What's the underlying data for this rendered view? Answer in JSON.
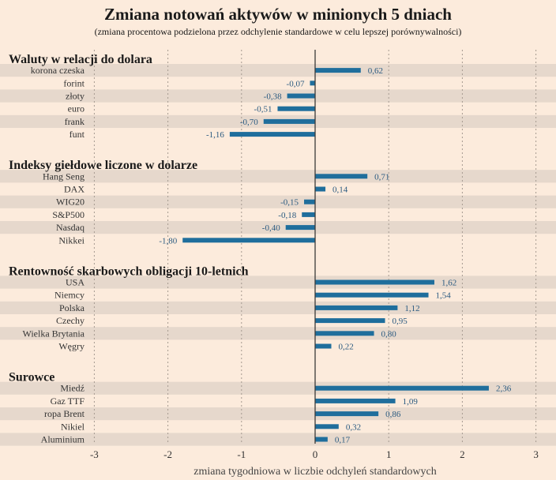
{
  "chart_data": {
    "type": "bar",
    "orientation": "horizontal",
    "title": "Zmiana notowań aktywów w minionych 5 dniach",
    "subtitle": "(zmiana procentowa podzielona przez odchylenie standardowe w celu lepszej porównywalności)",
    "xlabel": "zmiana tygodniowa w liczbie odchyleń standardowych",
    "xlim": [
      -3.3,
      3.2
    ],
    "xticks": [
      "-3",
      "-2",
      "-1",
      "0",
      "1",
      "2",
      "3"
    ],
    "bar_color": "#1f6e9c",
    "groups": [
      {
        "title": "Waluty w relacji do dolara",
        "items": [
          {
            "label": "korona czeska",
            "value": 0.62,
            "value_label": "0,62"
          },
          {
            "label": "forint",
            "value": -0.07,
            "value_label": "-0,07"
          },
          {
            "label": "złoty",
            "value": -0.38,
            "value_label": "-0,38"
          },
          {
            "label": "euro",
            "value": -0.51,
            "value_label": "-0,51"
          },
          {
            "label": "frank",
            "value": -0.7,
            "value_label": "-0,70"
          },
          {
            "label": "funt",
            "value": -1.16,
            "value_label": "-1,16"
          }
        ]
      },
      {
        "title": "Indeksy giełdowe liczone w dolarze",
        "items": [
          {
            "label": "Hang Seng",
            "value": 0.71,
            "value_label": "0,71"
          },
          {
            "label": "DAX",
            "value": 0.14,
            "value_label": "0,14"
          },
          {
            "label": "WIG20",
            "value": -0.15,
            "value_label": "-0,15"
          },
          {
            "label": "S&P500",
            "value": -0.18,
            "value_label": "-0,18"
          },
          {
            "label": "Nasdaq",
            "value": -0.4,
            "value_label": "-0,40"
          },
          {
            "label": "Nikkei",
            "value": -1.8,
            "value_label": "-1,80"
          }
        ]
      },
      {
        "title": "Rentowność skarbowych obligacji 10-letnich",
        "items": [
          {
            "label": "USA",
            "value": 1.62,
            "value_label": "1,62"
          },
          {
            "label": "Niemcy",
            "value": 1.54,
            "value_label": "1,54"
          },
          {
            "label": "Polska",
            "value": 1.12,
            "value_label": "1,12"
          },
          {
            "label": "Czechy",
            "value": 0.95,
            "value_label": "0,95"
          },
          {
            "label": "Wielka Brytania",
            "value": 0.8,
            "value_label": "0,80"
          },
          {
            "label": "Węgry",
            "value": 0.22,
            "value_label": "0,22"
          }
        ]
      },
      {
        "title": "Surowce",
        "items": [
          {
            "label": "Miedź",
            "value": 2.36,
            "value_label": "2,36"
          },
          {
            "label": "Gaz TTF",
            "value": 1.09,
            "value_label": "1,09"
          },
          {
            "label": "ropa Brent",
            "value": 0.86,
            "value_label": "0,86"
          },
          {
            "label": "Nikiel",
            "value": 0.32,
            "value_label": "0,32"
          },
          {
            "label": "Aluminium",
            "value": 0.17,
            "value_label": "0,17"
          }
        ]
      }
    ]
  }
}
